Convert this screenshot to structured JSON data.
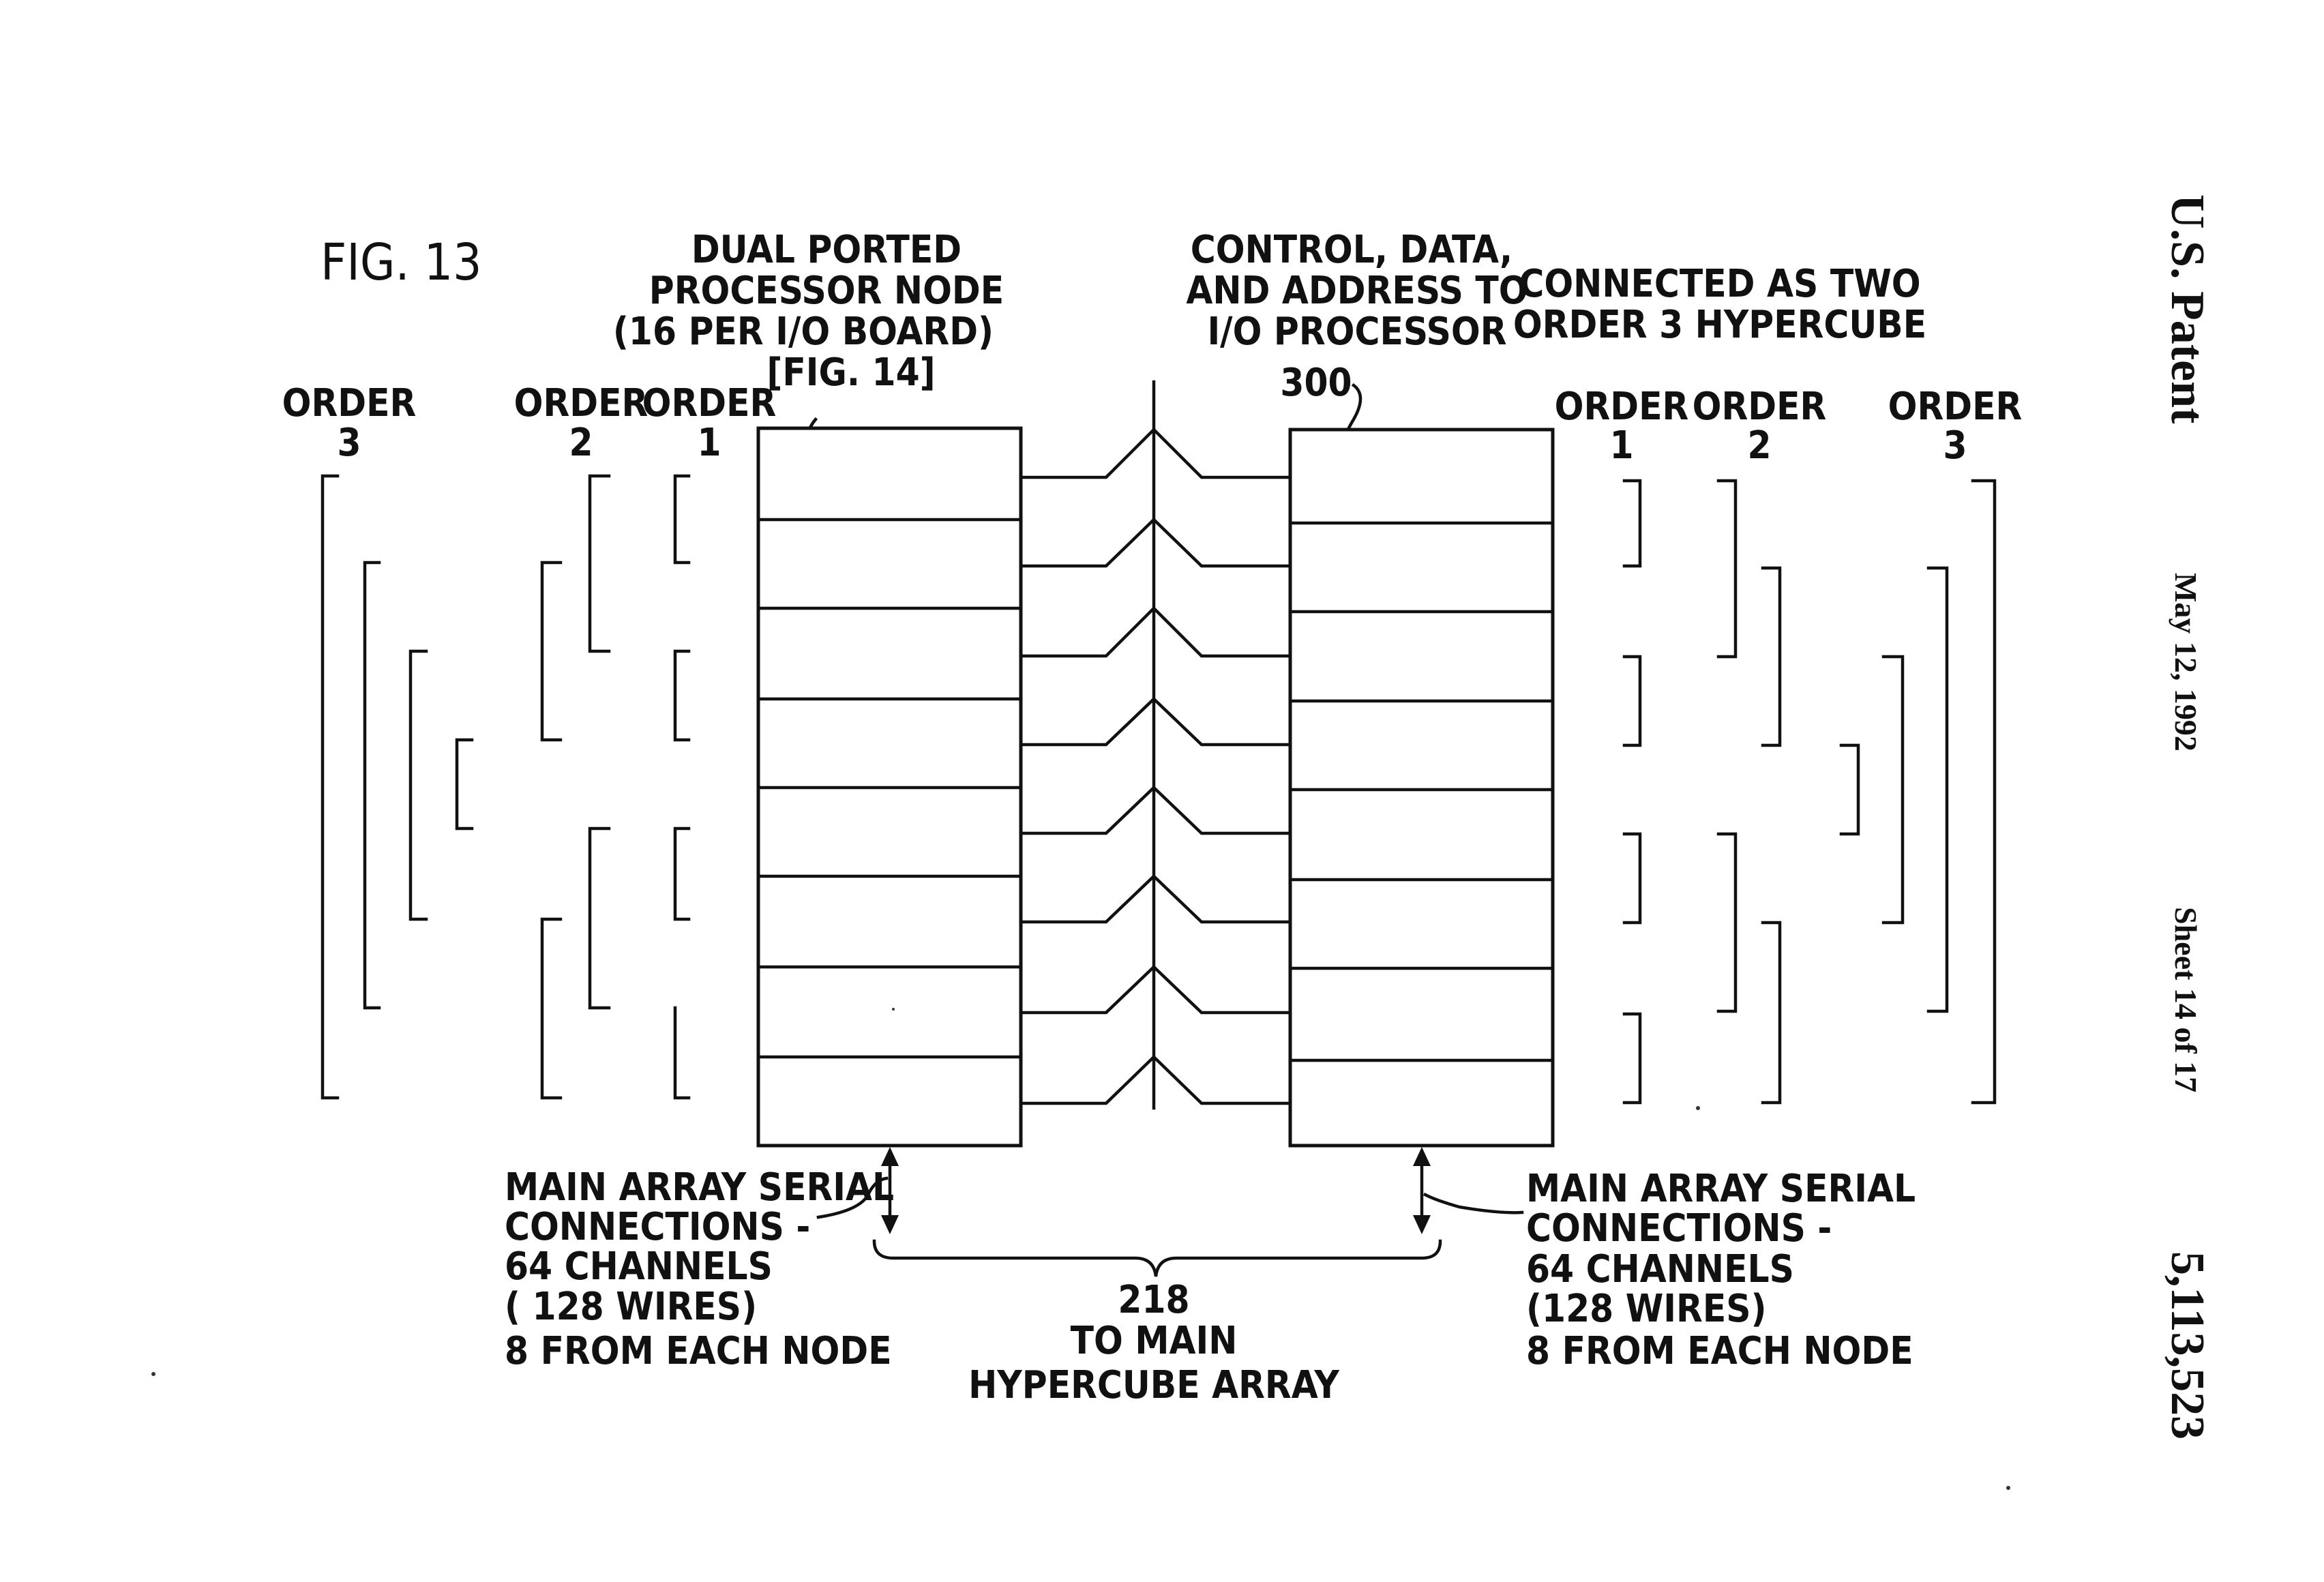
{
  "figure_label": "FIG. 13",
  "left_node_label": [
    "DUAL PORTED",
    "PROCESSOR NODE",
    "(16 PER I/O BOARD)",
    "[FIG. 14]"
  ],
  "right_node_label": [
    "CONTROL, DATA,",
    "AND ADDRESS TO",
    "I/O PROCESSOR",
    "300"
  ],
  "connected_label": [
    "CONNECTED AS TWO",
    "ORDER 3 HYPERCUBE"
  ],
  "left_orders": [
    {
      "word": "ORDER",
      "num": "3"
    },
    {
      "word": "ORDER",
      "num": "2"
    },
    {
      "word": "ORDER",
      "num": "1"
    }
  ],
  "right_orders": [
    {
      "word": "ORDER",
      "num": "1"
    },
    {
      "word": "ORDER",
      "num": "2"
    },
    {
      "word": "ORDER",
      "num": "3"
    }
  ],
  "left_main_array": [
    "MAIN ARRAY SERIAL",
    "CONNECTIONS -",
    "64 CHANNELS",
    "( 128 WIRES)",
    "8 FROM EACH NODE"
  ],
  "right_main_array": [
    "MAIN ARRAY SERIAL",
    "CONNECTIONS -",
    "64 CHANNELS",
    "(128 WIRES)",
    "8 FROM EACH NODE"
  ],
  "brace_label": [
    "218",
    "TO MAIN",
    "HYPERCUBE ARRAY"
  ],
  "side_header": {
    "patent": "U.S. Patent",
    "date": "May 12, 1992",
    "sheet": "Sheet 14 of 17",
    "number": "5,113,523"
  },
  "node_rows": 8
}
